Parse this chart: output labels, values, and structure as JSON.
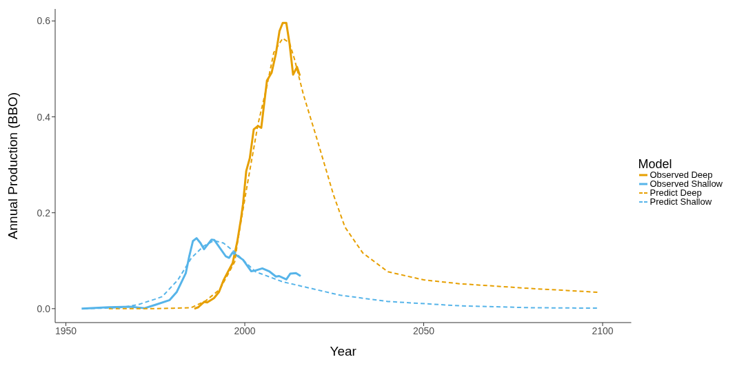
{
  "chart_data": {
    "type": "line",
    "xlabel": "Year",
    "ylabel": "Annual Production (BBO)",
    "legend_title": "Model",
    "legend": "right",
    "grid": false,
    "marker": "none",
    "xlim": [
      1947,
      2108
    ],
    "xticks": [
      1950,
      2000,
      2050,
      2100
    ],
    "ylim": [
      -0.029,
      0.625
    ],
    "yticks": [
      {
        "value": 0,
        "label": "0.0"
      },
      {
        "value": 0.2,
        "label": "0.2"
      },
      {
        "value": 0.4,
        "label": "0.4"
      },
      {
        "value": 0.6,
        "label": "0.6"
      }
    ],
    "series": [
      {
        "name": "Observed Deep",
        "color": "#e69f00",
        "line_style": "solid",
        "x": [
          1985.9,
          1987,
          1988.6,
          1989.5,
          1991.4,
          1992.8,
          1994.1,
          1995.3,
          1996.6,
          1997.9,
          1998.9,
          1999.5,
          2000.4,
          2001.4,
          2002.5,
          2003.7,
          2004.6,
          2006.2,
          2007.5,
          2008.7,
          2009.7,
          2010.6,
          2011.6,
          2012.5,
          2013.5,
          2014.6,
          2015.4
        ],
        "values": [
          0,
          0.003,
          0.014,
          0.013,
          0.022,
          0.035,
          0.06,
          0.077,
          0.095,
          0.14,
          0.186,
          0.218,
          0.287,
          0.314,
          0.374,
          0.381,
          0.377,
          0.476,
          0.492,
          0.532,
          0.579,
          0.596,
          0.596,
          0.553,
          0.488,
          0.504,
          0.486
        ]
      },
      {
        "name": "Observed Shallow",
        "color": "#56b4e9",
        "line_style": "solid",
        "x": [
          1954.4,
          1962,
          1968,
          1972,
          1975,
          1979,
          1981,
          1983.5,
          1984.5,
          1985.5,
          1986.5,
          1987.6,
          1988.6,
          1990.7,
          1991.5,
          1994.7,
          1995.6,
          1996.6,
          1999.5,
          2001.8,
          2002.7,
          2004.9,
          2006.8,
          2008.7,
          2009.6,
          2011.6,
          2012.7,
          2014.3,
          2015.6
        ],
        "values": [
          0,
          0.003,
          0.004,
          0.001,
          0.008,
          0.018,
          0.035,
          0.074,
          0.11,
          0.141,
          0.147,
          0.137,
          0.124,
          0.144,
          0.143,
          0.109,
          0.106,
          0.117,
          0.102,
          0.078,
          0.079,
          0.084,
          0.078,
          0.067,
          0.068,
          0.061,
          0.073,
          0.074,
          0.068
        ]
      },
      {
        "name": "Predict Deep",
        "color": "#e69f00",
        "line_style": "dashed",
        "x": [
          1962,
          1965,
          1975,
          1980,
          1985,
          1989,
          1993,
          1997.2,
          1998,
          2000.4,
          2003.7,
          2006.2,
          2008.1,
          2010.6,
          2012.5,
          2013.9,
          2016.4,
          2020.2,
          2024.8,
          2028,
          2033,
          2040,
          2050,
          2060,
          2070,
          2080,
          2090,
          2099
        ],
        "values": [
          0,
          0,
          0,
          0.001,
          0.002,
          0.016,
          0.04,
          0.098,
          0.14,
          0.246,
          0.385,
          0.465,
          0.534,
          0.564,
          0.554,
          0.52,
          0.446,
          0.353,
          0.237,
          0.17,
          0.116,
          0.077,
          0.06,
          0.052,
          0.047,
          0.042,
          0.038,
          0.034
        ]
      },
      {
        "name": "Predict Shallow",
        "color": "#56b4e9",
        "line_style": "dashed",
        "x": [
          1955,
          1965,
          1970,
          1975,
          1976.9,
          1981.3,
          1985.1,
          1988.4,
          1991.4,
          1994,
          1997.2,
          2003,
          2010.6,
          2026.7,
          2040,
          2060,
          2080,
          2099
        ],
        "values": [
          0,
          0.002,
          0.008,
          0.02,
          0.025,
          0.06,
          0.106,
          0.13,
          0.142,
          0.137,
          0.118,
          0.077,
          0.056,
          0.028,
          0.015,
          0.006,
          0.002,
          0.001
        ]
      }
    ]
  }
}
